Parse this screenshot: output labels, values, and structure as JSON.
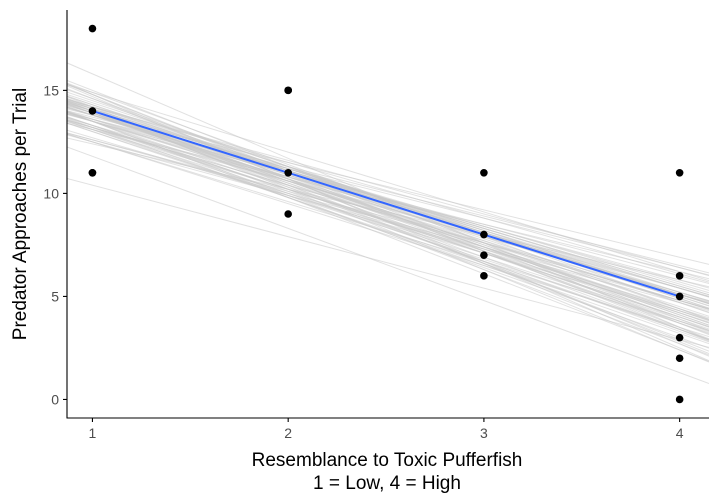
{
  "chart_data": {
    "type": "scatter",
    "xlabel": [
      "Resemblance to Toxic Pufferfish",
      "1 = Low, 4 = High"
    ],
    "ylabel": "Predator Approaches per Trial",
    "xlim": [
      0.87,
      4.15
    ],
    "ylim": [
      -0.9,
      18.9
    ],
    "x_ticks": [
      1,
      2,
      3,
      4
    ],
    "y_ticks": [
      0,
      5,
      10,
      15
    ],
    "grid": false,
    "points": [
      {
        "x": 1,
        "y": 18
      },
      {
        "x": 1,
        "y": 14
      },
      {
        "x": 1,
        "y": 11
      },
      {
        "x": 1,
        "y": 11
      },
      {
        "x": 2,
        "y": 15
      },
      {
        "x": 2,
        "y": 15
      },
      {
        "x": 2,
        "y": 11
      },
      {
        "x": 2,
        "y": 9
      },
      {
        "x": 3,
        "y": 11
      },
      {
        "x": 3,
        "y": 8
      },
      {
        "x": 3,
        "y": 7
      },
      {
        "x": 3,
        "y": 6
      },
      {
        "x": 4,
        "y": 11
      },
      {
        "x": 4,
        "y": 6
      },
      {
        "x": 4,
        "y": 5
      },
      {
        "x": 4,
        "y": 3
      },
      {
        "x": 4,
        "y": 2
      },
      {
        "x": 4,
        "y": 0
      }
    ],
    "fit_line": {
      "x": [
        1,
        4
      ],
      "y": [
        14,
        5
      ]
    },
    "bootstrap_lines": [
      {
        "a": 15.3,
        "b": -3.5
      },
      {
        "a": 17.1,
        "b": -3.0
      },
      {
        "a": 17.4,
        "b": -3.3
      },
      {
        "a": 16.1,
        "b": -2.3
      },
      {
        "a": 12.9,
        "b": -2.5
      },
      {
        "a": 18.9,
        "b": -4.1
      },
      {
        "a": 16.9,
        "b": -3.4
      },
      {
        "a": 16.0,
        "b": -2.7
      },
      {
        "a": 15.1,
        "b": -2.5
      },
      {
        "a": 18.0,
        "b": -3.9
      },
      {
        "a": 16.3,
        "b": -2.8
      },
      {
        "a": 17.8,
        "b": -2.9
      },
      {
        "a": 16.8,
        "b": -2.6
      },
      {
        "a": 18.4,
        "b": -3.5
      },
      {
        "a": 19.9,
        "b": -4.1
      },
      {
        "a": 15.5,
        "b": -3.0
      },
      {
        "a": 15.2,
        "b": -2.6
      },
      {
        "a": 18.6,
        "b": -3.8
      },
      {
        "a": 16.1,
        "b": -2.4
      },
      {
        "a": 16.4,
        "b": -3.1
      },
      {
        "a": 16.6,
        "b": -3.3
      },
      {
        "a": 17.3,
        "b": -3.3
      },
      {
        "a": 16.0,
        "b": -2.5
      },
      {
        "a": 16.9,
        "b": -3.1
      },
      {
        "a": 16.9,
        "b": -2.7
      },
      {
        "a": 16.6,
        "b": -3.4
      },
      {
        "a": 17.2,
        "b": -3.7
      },
      {
        "a": 16.4,
        "b": -3.1
      },
      {
        "a": 16.4,
        "b": -3.3
      },
      {
        "a": 17.9,
        "b": -3.3
      },
      {
        "a": 17.1,
        "b": -3.6
      },
      {
        "a": 15.4,
        "b": -2.3
      },
      {
        "a": 17.0,
        "b": -3.0
      },
      {
        "a": 17.4,
        "b": -3.1
      },
      {
        "a": 18.0,
        "b": -3.8
      },
      {
        "a": 16.8,
        "b": -2.8
      },
      {
        "a": 15.4,
        "b": -2.9
      },
      {
        "a": 15.1,
        "b": -2.6
      },
      {
        "a": 17.0,
        "b": -2.9
      },
      {
        "a": 16.2,
        "b": -2.7
      },
      {
        "a": 17.7,
        "b": -3.7
      },
      {
        "a": 17.3,
        "b": -3.4
      },
      {
        "a": 16.5,
        "b": -2.7
      },
      {
        "a": 16.0,
        "b": -2.8
      },
      {
        "a": 16.7,
        "b": -3.2
      },
      {
        "a": 17.4,
        "b": -3.5
      },
      {
        "a": 16.6,
        "b": -2.8
      },
      {
        "a": 16.4,
        "b": -2.8
      },
      {
        "a": 18.3,
        "b": -3.7
      },
      {
        "a": 16.7,
        "b": -2.9
      },
      {
        "a": 14.6,
        "b": -2.2
      },
      {
        "a": 17.7,
        "b": -3.2
      },
      {
        "a": 16.2,
        "b": -3.0
      },
      {
        "a": 18.5,
        "b": -3.7
      },
      {
        "a": 16.0,
        "b": -2.8
      },
      {
        "a": 17.1,
        "b": -3.1
      },
      {
        "a": 16.7,
        "b": -3.1
      },
      {
        "a": 18.7,
        "b": -4.0
      },
      {
        "a": 18.7,
        "b": -3.7
      },
      {
        "a": 16.2,
        "b": -2.6
      },
      {
        "a": 16.7,
        "b": -2.8
      },
      {
        "a": 17.1,
        "b": -3.2
      },
      {
        "a": 17.3,
        "b": -3.3
      },
      {
        "a": 17.4,
        "b": -3.4
      },
      {
        "a": 16.1,
        "b": -3.1
      },
      {
        "a": 15.5,
        "b": -2.8
      },
      {
        "a": 16.0,
        "b": -2.4
      },
      {
        "a": 16.7,
        "b": -2.8
      },
      {
        "a": 15.8,
        "b": -2.6
      },
      {
        "a": 17.5,
        "b": -3.1
      },
      {
        "a": 17.2,
        "b": -3.3
      },
      {
        "a": 17.0,
        "b": -3.2
      },
      {
        "a": 16.0,
        "b": -2.9
      },
      {
        "a": 16.2,
        "b": -3.1
      },
      {
        "a": 17.6,
        "b": -3.3
      },
      {
        "a": 17.3,
        "b": -3.1
      },
      {
        "a": 17.1,
        "b": -3.0
      },
      {
        "a": 17.2,
        "b": -3.0
      },
      {
        "a": 16.4,
        "b": -2.9
      },
      {
        "a": 16.2,
        "b": -3.2
      }
    ],
    "colors": {
      "points": "#000000",
      "fit_line": "#3366ff",
      "bootstrap_lines": "#c8c8c8",
      "axis": "#000000",
      "tick_label": "#4d4d4d"
    }
  }
}
